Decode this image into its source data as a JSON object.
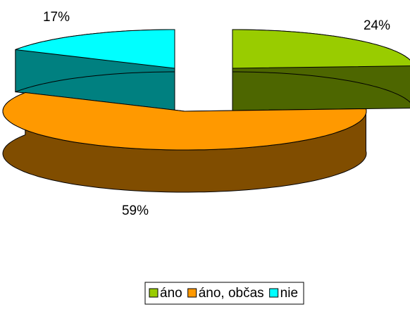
{
  "chart_data": {
    "type": "pie3d",
    "categories": [
      "áno",
      "áno, občas",
      "nie"
    ],
    "values": [
      24,
      59,
      17
    ],
    "value_labels": [
      "24%",
      "59%",
      "17%"
    ],
    "colors": [
      "#99cc00",
      "#ff9900",
      "#00ffff"
    ],
    "side_colors": [
      "#4d6600",
      "#804d00",
      "#008080"
    ],
    "legend": "bottom"
  }
}
